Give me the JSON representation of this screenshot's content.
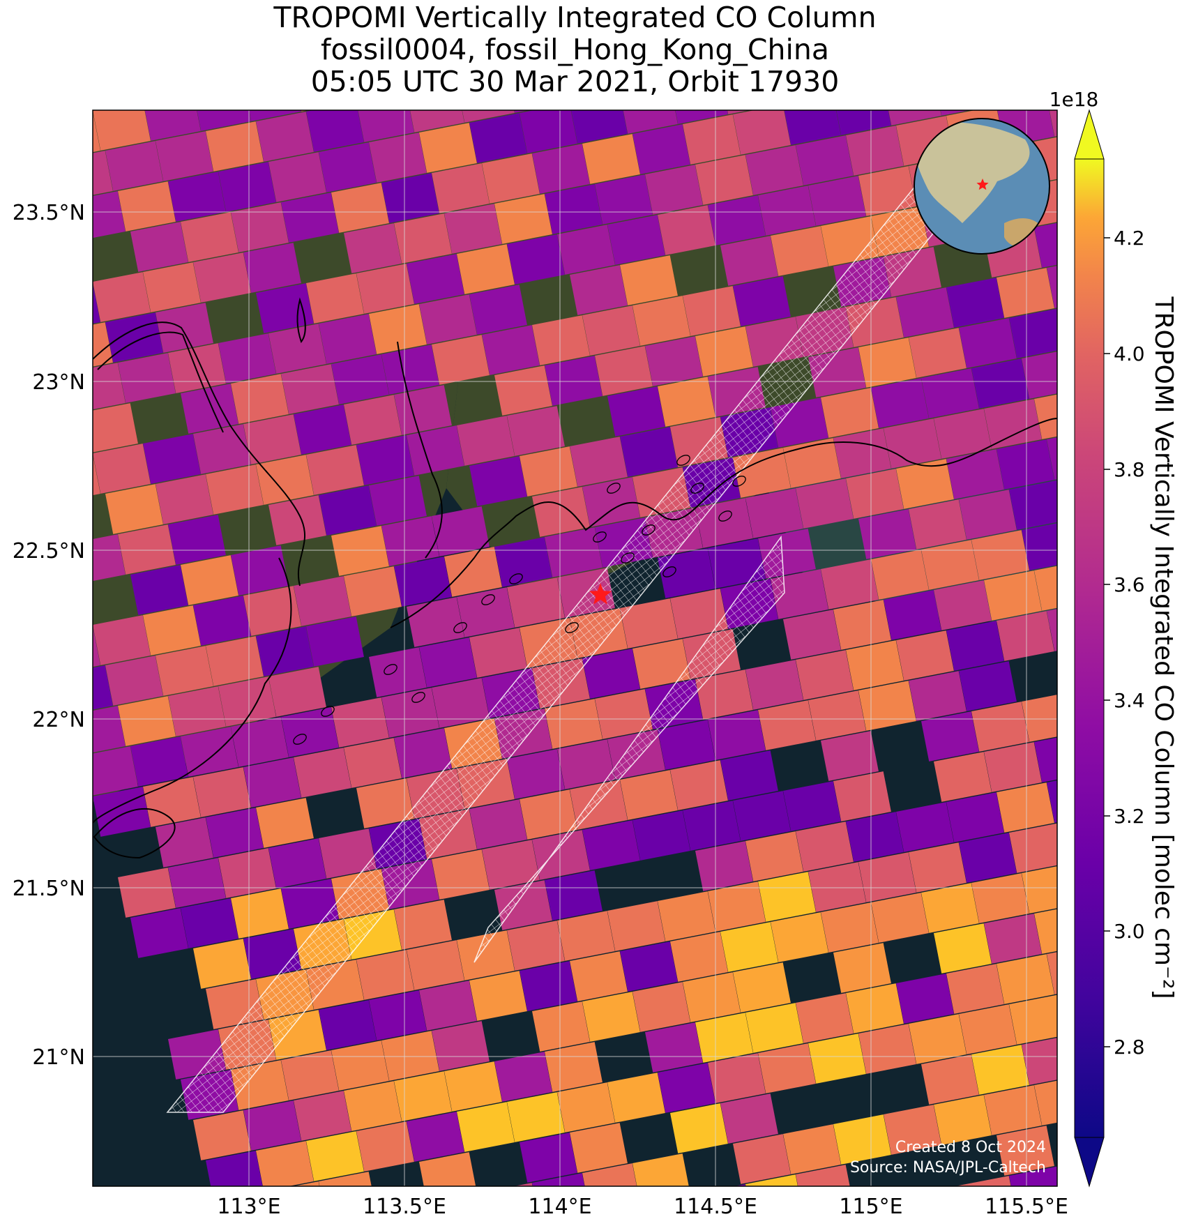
{
  "title": {
    "line1": "TROPOMI Vertically Integrated CO Column",
    "line2": "fossil0004, fossil_Hong_Kong_China",
    "line3": "05:05 UTC 30 Mar 2021, Orbit 17930"
  },
  "map": {
    "lon_ticks": [
      "113°E",
      "113.5°E",
      "114°E",
      "114.5°E",
      "115°E",
      "115.5°E"
    ],
    "lat_ticks": [
      "23.5°N",
      "23°N",
      "22.5°N",
      "22°N",
      "21.5°N",
      "21°N"
    ],
    "target_marker": "red-star",
    "credit_line1": "Created 8 Oct 2024",
    "credit_line2": "Source: NASA/JPL-Caltech"
  },
  "colorbar": {
    "label": "TROPOMI Vertically Integrated CO Column [molec cm⁻²]",
    "exponent": "1e18",
    "ticks": [
      "4.2",
      "4.0",
      "3.8",
      "3.6",
      "3.4",
      "3.2",
      "3.0",
      "2.8"
    ],
    "colormap": "plasma",
    "extend": "both"
  },
  "colors": {
    "ocean": "#10242f",
    "land": "#3d4a2a",
    "target_marker": "#ff1a1a",
    "grid": "#d9d9d9"
  }
}
